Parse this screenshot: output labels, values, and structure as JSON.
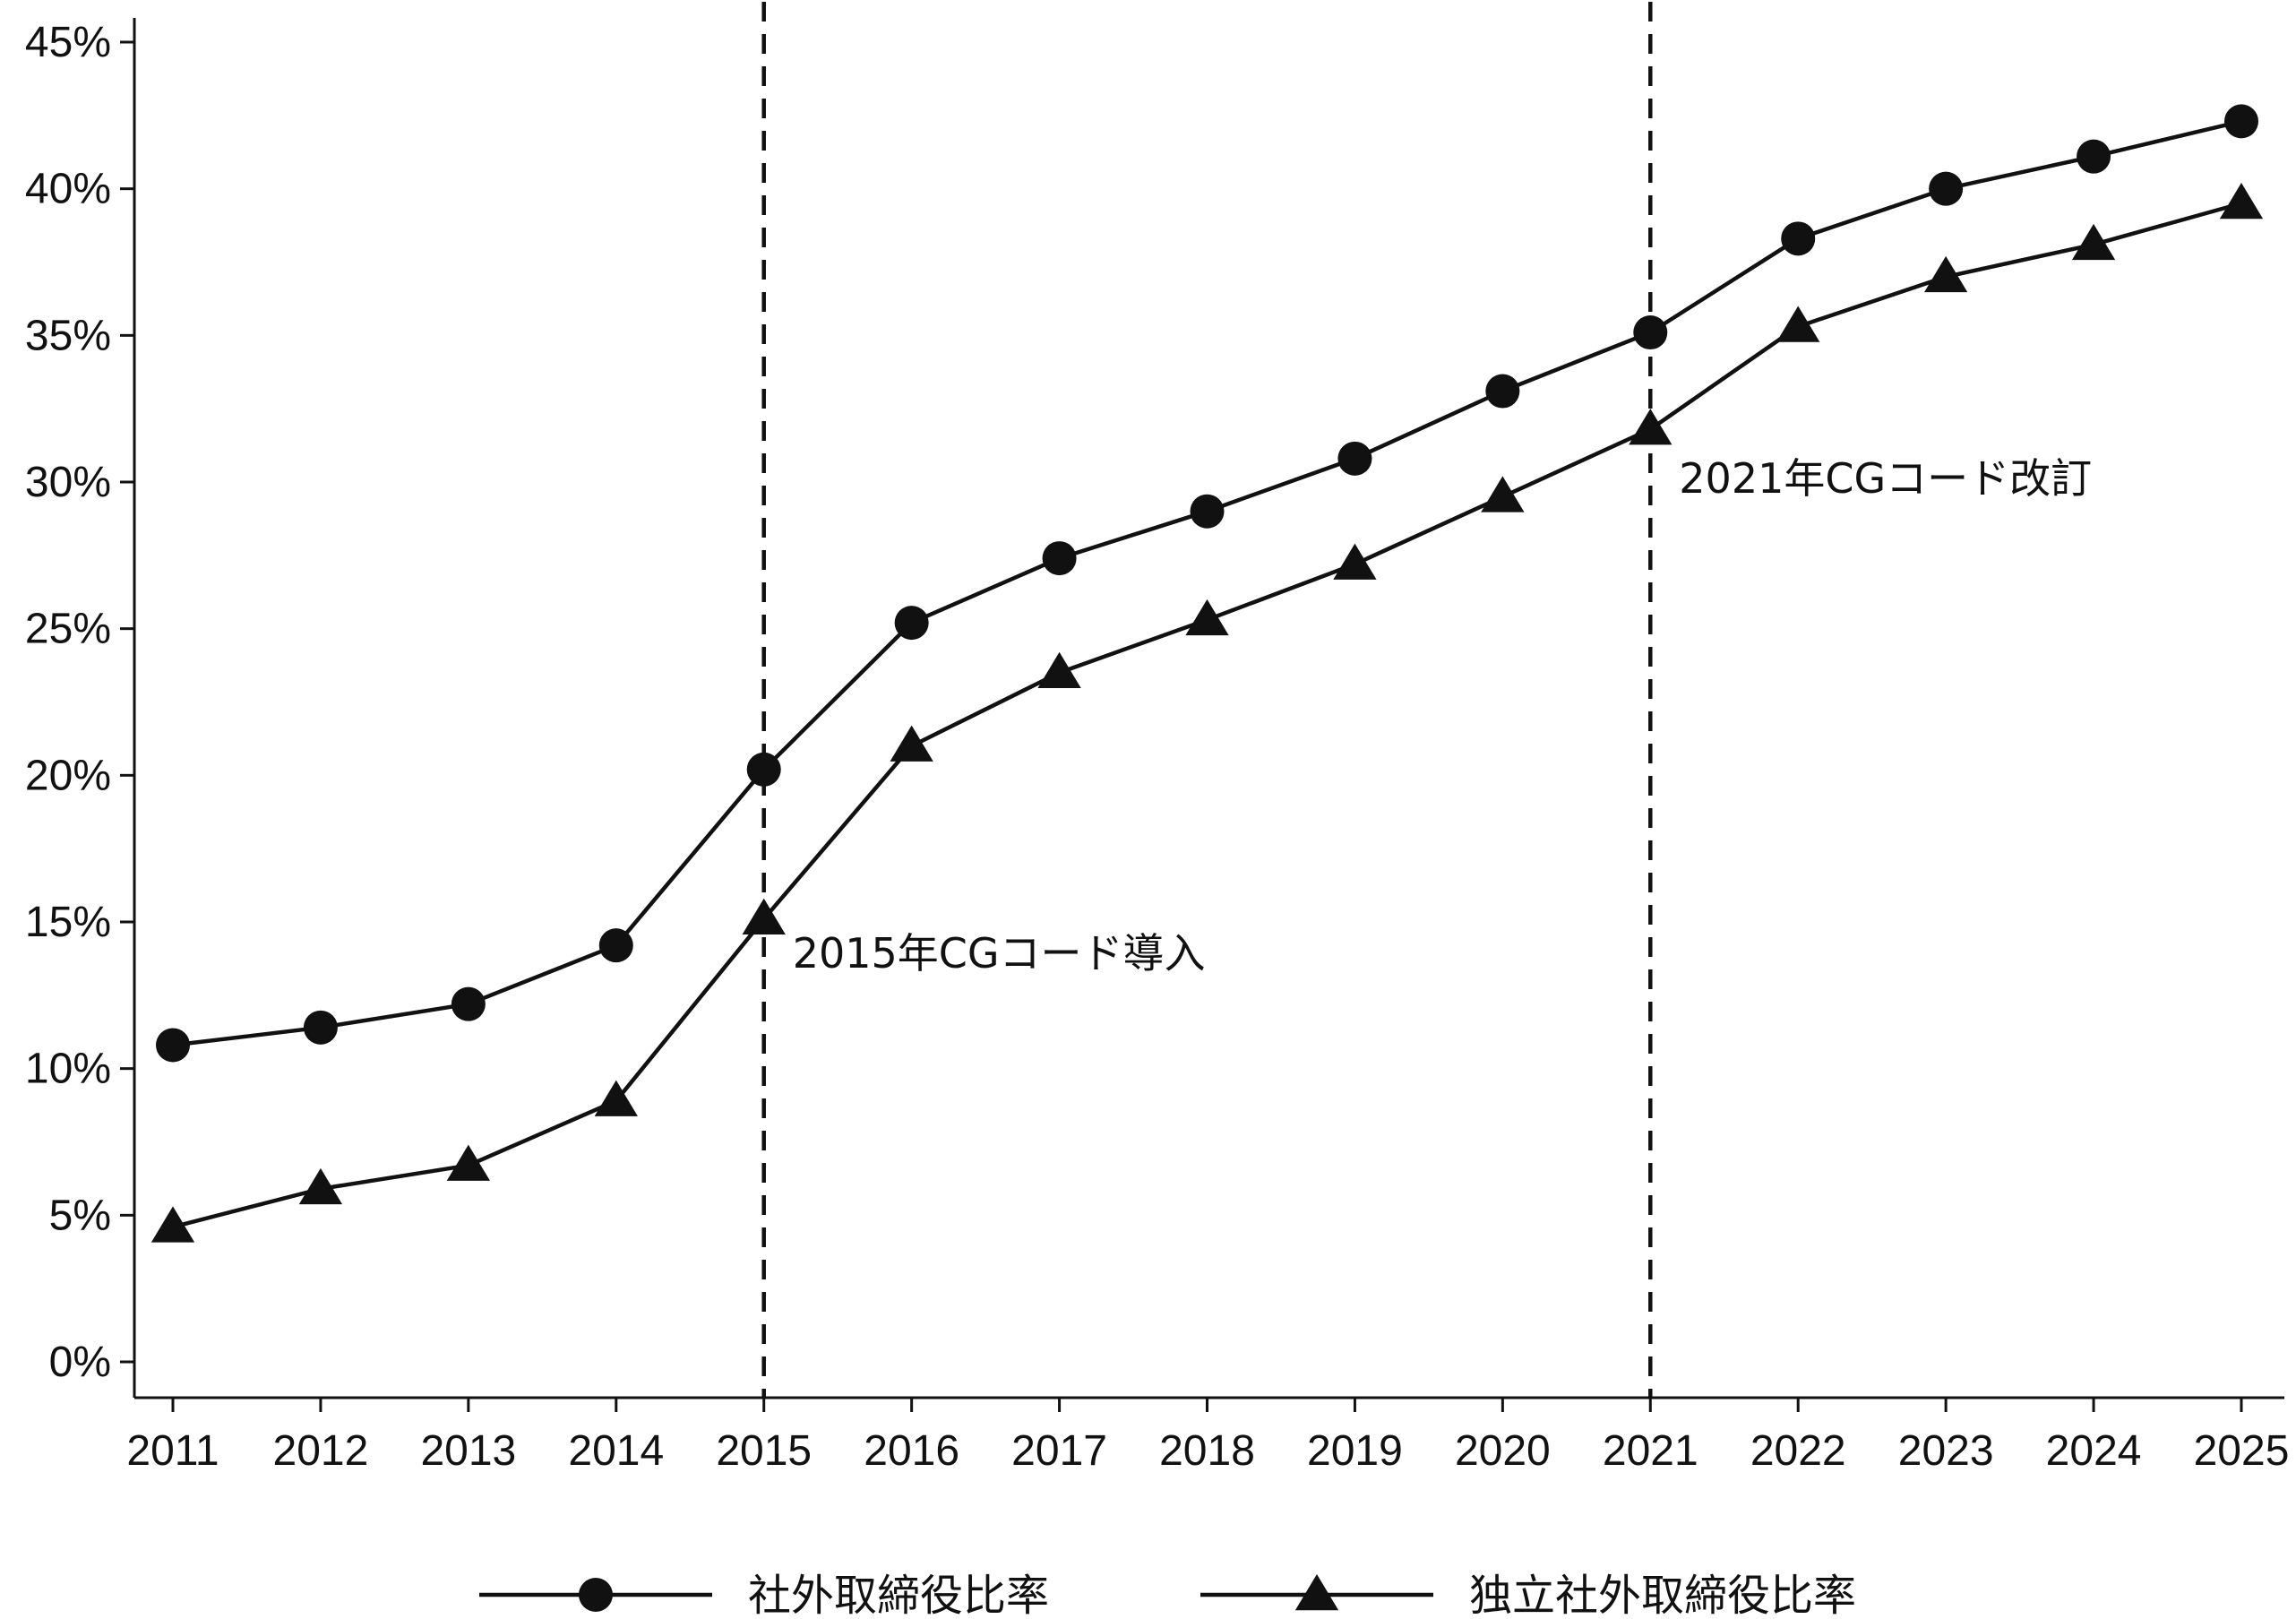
{
  "chart_data": {
    "type": "line",
    "x": [
      2011,
      2012,
      2013,
      2014,
      2015,
      2016,
      2017,
      2018,
      2019,
      2020,
      2021,
      2022,
      2023,
      2024,
      2025
    ],
    "x_tick_labels": [
      "2011",
      "2012",
      "2013",
      "2014",
      "2015",
      "2016",
      "2017",
      "2018",
      "2019",
      "2020",
      "2021",
      "2022",
      "2023",
      "2024",
      "2025"
    ],
    "y_tick_values": [
      0,
      5,
      10,
      15,
      20,
      25,
      30,
      35,
      40,
      45
    ],
    "y_tick_labels": [
      "0%",
      "5%",
      "10%",
      "15%",
      "20%",
      "25%",
      "30%",
      "35%",
      "40%",
      "45%"
    ],
    "ylim": [
      0,
      45
    ],
    "grid": false,
    "legend_position": "bottom",
    "title": "",
    "xlabel": "",
    "ylabel": "",
    "series": [
      {
        "name": "社外取締役比率",
        "marker": "circle",
        "values": [
          10.8,
          11.4,
          12.2,
          14.2,
          20.2,
          25.2,
          27.4,
          29.0,
          30.8,
          33.1,
          35.1,
          38.3,
          40.0,
          41.1,
          42.3
        ]
      },
      {
        "name": "独立社外取締役比率",
        "marker": "triangle",
        "values": [
          4.6,
          5.9,
          6.7,
          8.9,
          15.1,
          21.0,
          23.5,
          25.3,
          27.2,
          29.5,
          31.8,
          35.3,
          37.0,
          38.1,
          39.5
        ]
      }
    ],
    "reference_lines": [
      {
        "x": 2015,
        "style": "dashed",
        "label": "2015年CGコード導入"
      },
      {
        "x": 2021,
        "style": "dashed",
        "label": "2021年CGコード改訂"
      }
    ]
  },
  "colors": {
    "line": "#111111",
    "background": "#ffffff"
  }
}
